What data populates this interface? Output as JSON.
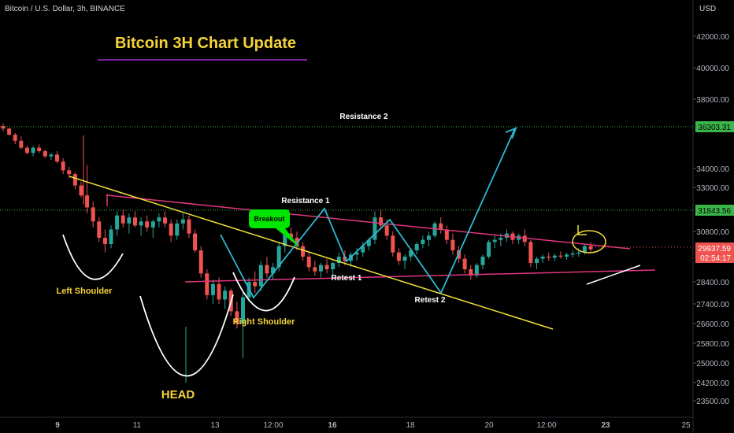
{
  "header": {
    "symbol_line": "Bitcoin / U.S. Dollar, 3h, BINANCE",
    "currency": "USD"
  },
  "title": "Bitcoin 3H Chart Update",
  "colors": {
    "background": "#000000",
    "up": "#26a69a",
    "down": "#ef5350",
    "pink": "#e0367f",
    "yellow": "#f2e03a",
    "cyan": "#2eb8d0",
    "white": "#ffffff",
    "purple": "#a22ccf",
    "green_label": "#00e600"
  },
  "chart_data": {
    "type": "candlestick",
    "y_axis": {
      "label": "USD",
      "ticks": [
        "42000.00",
        "40000.00",
        "38000.00",
        "34000.00",
        "33000.00",
        "30800.00",
        "28400.00",
        "27400.00",
        "26600.00",
        "25800.00",
        "25000.00",
        "24200.00",
        "23500.00"
      ]
    },
    "x_axis": {
      "ticks": [
        "9",
        "11",
        "13",
        "12:00",
        "16",
        "18",
        "20",
        "12:00",
        "23",
        "25"
      ]
    },
    "price_labels": {
      "resistance_2": "36303.31",
      "resistance_1": "31843.56",
      "current": "29937.59",
      "countdown": "02:54:17"
    },
    "annotations": [
      "Resistance 2",
      "Resistance 1",
      "Breakout",
      "Retest 1",
      "Retest 2",
      "Left Shoulder",
      "Right Shoulder",
      "HEAD"
    ],
    "candles": [
      [
        36450,
        36600,
        36150,
        36300
      ],
      [
        36300,
        36350,
        35900,
        35950
      ],
      [
        35950,
        36050,
        35400,
        35600
      ],
      [
        35600,
        35850,
        35100,
        35200
      ],
      [
        35200,
        35300,
        34800,
        34900
      ],
      [
        34900,
        35300,
        34700,
        35200
      ],
      [
        35200,
        35400,
        34900,
        35000
      ],
      [
        35000,
        35100,
        34600,
        34700
      ],
      [
        34700,
        34900,
        34500,
        34800
      ],
      [
        34800,
        35000,
        34300,
        34400
      ],
      [
        34400,
        34600,
        33700,
        33900
      ],
      [
        33900,
        34100,
        33500,
        33700
      ],
      [
        33700,
        33800,
        32900,
        33100
      ],
      [
        33100,
        33300,
        32500,
        32600
      ],
      [
        32600,
        34200,
        31700,
        32000
      ],
      [
        32000,
        32300,
        31000,
        31300
      ],
      [
        31300,
        31500,
        30300,
        30500
      ],
      [
        30500,
        30900,
        29800,
        30200
      ],
      [
        30200,
        31100,
        30000,
        30900
      ],
      [
        30900,
        31800,
        30600,
        31600
      ],
      [
        31600,
        31900,
        31000,
        31200
      ],
      [
        31200,
        31700,
        30700,
        31500
      ],
      [
        31500,
        31800,
        31000,
        31100
      ],
      [
        31100,
        31500,
        30600,
        31300
      ],
      [
        31300,
        31600,
        30800,
        31000
      ],
      [
        31000,
        31400,
        30500,
        31300
      ],
      [
        31300,
        31700,
        31000,
        31500
      ],
      [
        31500,
        31800,
        31000,
        31200
      ],
      [
        31200,
        31400,
        30300,
        30600
      ],
      [
        30600,
        31400,
        30400,
        31200
      ],
      [
        31200,
        31700,
        30900,
        31400
      ],
      [
        31400,
        31600,
        30500,
        30700
      ],
      [
        30700,
        30900,
        29800,
        29900
      ],
      [
        29900,
        30100,
        28600,
        28800
      ],
      [
        28800,
        29000,
        27600,
        27800
      ],
      [
        27800,
        28500,
        27400,
        28300
      ],
      [
        28300,
        28600,
        27400,
        27600
      ],
      [
        27600,
        28200,
        27200,
        28000
      ],
      [
        28000,
        28100,
        26900,
        27100
      ],
      [
        27100,
        27500,
        26400,
        26600
      ],
      [
        26600,
        27900,
        25200,
        27700
      ],
      [
        27700,
        28600,
        27500,
        28400
      ],
      [
        28400,
        28900,
        27900,
        28200
      ],
      [
        28200,
        29400,
        28000,
        29200
      ],
      [
        29200,
        29600,
        28600,
        28800
      ],
      [
        28800,
        29300,
        28500,
        29100
      ],
      [
        29100,
        30300,
        28900,
        30100
      ],
      [
        30100,
        30900,
        29800,
        30700
      ],
      [
        30700,
        31000,
        30300,
        30500
      ],
      [
        30500,
        30800,
        29900,
        30100
      ],
      [
        30100,
        30300,
        29400,
        29600
      ],
      [
        29600,
        29800,
        28900,
        29100
      ],
      [
        29100,
        29400,
        28700,
        28900
      ],
      [
        28900,
        29300,
        28600,
        29200
      ],
      [
        29200,
        29500,
        28800,
        29000
      ],
      [
        29000,
        29400,
        28700,
        29300
      ],
      [
        29300,
        29800,
        29100,
        29600
      ],
      [
        29600,
        29900,
        29200,
        29400
      ],
      [
        29400,
        29800,
        29100,
        29700
      ],
      [
        29700,
        30000,
        29400,
        29800
      ],
      [
        29800,
        30300,
        29600,
        30100
      ],
      [
        30100,
        30500,
        29900,
        30400
      ],
      [
        30400,
        31800,
        30200,
        31500
      ],
      [
        31500,
        31900,
        30900,
        31100
      ],
      [
        31100,
        31400,
        30400,
        30600
      ],
      [
        30600,
        30800,
        29600,
        29800
      ],
      [
        29800,
        30000,
        29200,
        29400
      ],
      [
        29400,
        29700,
        29000,
        29600
      ],
      [
        29600,
        30000,
        29400,
        29900
      ],
      [
        29900,
        30300,
        29700,
        30200
      ],
      [
        30200,
        30600,
        30000,
        30400
      ],
      [
        30400,
        30800,
        30100,
        30600
      ],
      [
        30600,
        31300,
        30500,
        31200
      ],
      [
        31200,
        31500,
        30700,
        30900
      ],
      [
        30900,
        31100,
        30200,
        30400
      ],
      [
        30400,
        30700,
        29700,
        29900
      ],
      [
        29900,
        30100,
        29300,
        29500
      ],
      [
        29500,
        29700,
        28800,
        29000
      ],
      [
        29000,
        29200,
        28500,
        28700
      ],
      [
        28700,
        29300,
        28600,
        29200
      ],
      [
        29200,
        29700,
        29000,
        29600
      ],
      [
        29600,
        30400,
        29500,
        30300
      ],
      [
        30300,
        30600,
        30000,
        30400
      ],
      [
        30400,
        30700,
        30100,
        30500
      ],
      [
        30500,
        30900,
        30300,
        30700
      ],
      [
        30700,
        30800,
        30200,
        30400
      ],
      [
        30400,
        30700,
        30200,
        30600
      ],
      [
        30600,
        30900,
        30100,
        30300
      ],
      [
        30300,
        30400,
        29100,
        29300
      ],
      [
        29300,
        29600,
        29000,
        29500
      ],
      [
        29500,
        29700,
        29300,
        29600
      ],
      [
        29600,
        29800,
        29400,
        29550
      ],
      [
        29550,
        29750,
        29400,
        29650
      ],
      [
        29650,
        29850,
        29500,
        29600
      ],
      [
        29600,
        29800,
        29450,
        29700
      ],
      [
        29700,
        29900,
        29550,
        29750
      ],
      [
        29750,
        30000,
        29600,
        29800
      ],
      [
        29800,
        30200,
        29700,
        30100
      ],
      [
        30100,
        30300,
        29800,
        29950
      ]
    ]
  }
}
